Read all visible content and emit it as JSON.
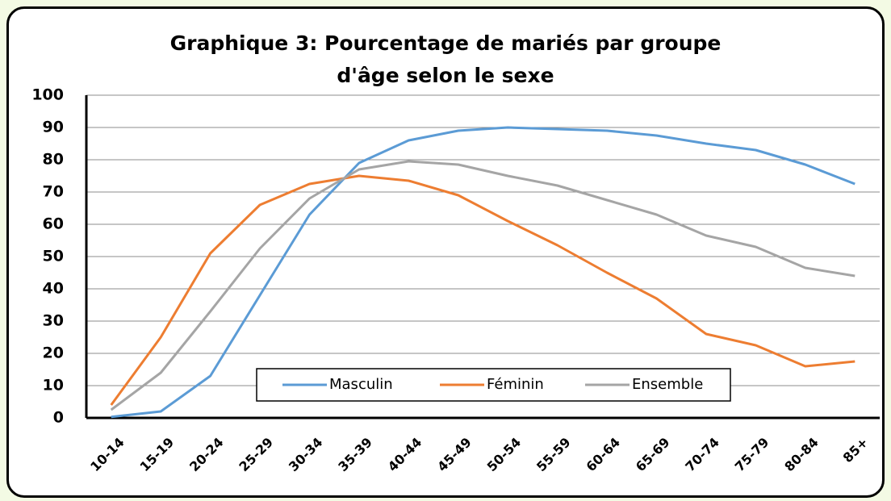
{
  "chart_data": {
    "type": "line",
    "title": "Graphique 3: Pourcentage de mariés par groupe d'âge selon le sexe",
    "categories": [
      "10-14",
      "15-19",
      "20-24",
      "25-29",
      "30-34",
      "35-39",
      "40-44",
      "45-49",
      "50-54",
      "55-59",
      "60-64",
      "65-69",
      "70-74",
      "75-79",
      "80-84",
      "85+"
    ],
    "series": [
      {
        "name": "Masculin",
        "color": "#5b9bd5",
        "values": [
          0.3,
          2,
          13,
          38,
          63,
          79,
          86,
          89,
          90,
          89.5,
          89,
          87.5,
          85,
          83,
          78.5,
          72.5
        ]
      },
      {
        "name": "Féminin",
        "color": "#ed7d31",
        "values": [
          4,
          25,
          51,
          66,
          72.5,
          75,
          73.5,
          69,
          61,
          53.5,
          45,
          37,
          26,
          22.5,
          16,
          17.5
        ]
      },
      {
        "name": "Ensemble",
        "color": "#a5a5a5",
        "values": [
          2.5,
          14,
          33,
          52.5,
          68,
          77,
          79.5,
          78.5,
          75,
          72,
          67.5,
          63,
          56.5,
          53,
          46.5,
          44
        ]
      }
    ],
    "ylim": [
      0,
      100
    ],
    "yticks": [
      0,
      10,
      20,
      30,
      40,
      50,
      60,
      70,
      80,
      90,
      100
    ],
    "grid": true,
    "legend": "bottom"
  }
}
